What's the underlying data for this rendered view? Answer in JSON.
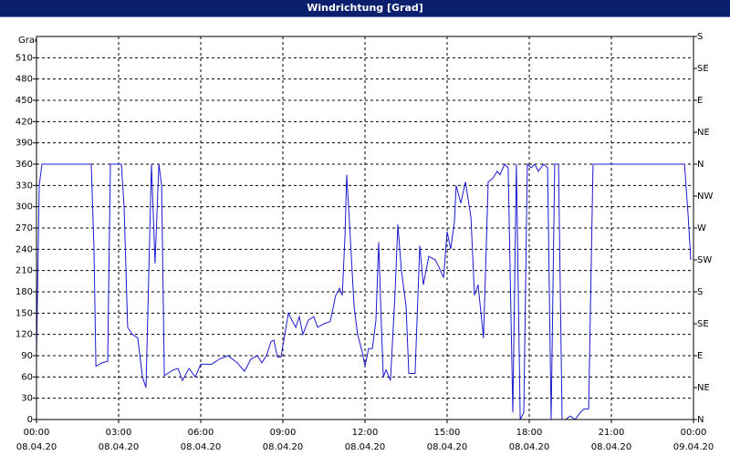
{
  "chart_data": {
    "type": "line",
    "title": "Windrichtung [Grad]",
    "y_label": "Grad",
    "x": [
      0,
      0.1,
      0.2,
      2,
      2.1,
      2.17,
      2.4,
      2.6,
      2.7,
      3.1,
      3.2,
      3.33,
      3.5,
      3.7,
      3.87,
      4,
      4.2,
      4.33,
      4.47,
      4.57,
      4.67,
      5,
      5.17,
      5.33,
      5.57,
      5.8,
      6,
      6.4,
      6.67,
      7,
      7.33,
      7.6,
      7.83,
      8.07,
      8.23,
      8.4,
      8.57,
      8.67,
      8.8,
      8.93,
      9.07,
      9.2,
      9.33,
      9.47,
      9.6,
      9.73,
      9.93,
      10.13,
      10.27,
      10.5,
      10.73,
      10.93,
      11.07,
      11.17,
      11.27,
      11.33,
      11.43,
      11.6,
      11.73,
      11.9,
      12,
      12.13,
      12.27,
      12.4,
      12.5,
      12.6,
      12.67,
      12.77,
      12.93,
      13.1,
      13.2,
      13.33,
      13.5,
      13.6,
      13.83,
      14,
      14.13,
      14.33,
      14.57,
      14.7,
      14.87,
      15,
      15.13,
      15.27,
      15.33,
      15.5,
      15.67,
      15.87,
      16,
      16.13,
      16.33,
      16.5,
      16.67,
      16.83,
      16.93,
      17.1,
      17.23,
      17.4,
      17.53,
      17.67,
      17.8,
      17.93,
      18.07,
      18.2,
      18.33,
      18.53,
      18.67,
      18.8,
      18.93,
      19.07,
      19.2,
      19.33,
      19.5,
      19.67,
      19.87,
      20,
      20.17,
      20.33,
      20.67,
      23.67,
      23.8,
      23.9
    ],
    "series": [
      {
        "name": "Windrichtung",
        "color": "#1a1ad0",
        "values": [
          90,
          330,
          360,
          360,
          240,
          75,
          80,
          82,
          360,
          360,
          300,
          130,
          120,
          115,
          60,
          45,
          360,
          220,
          360,
          330,
          62,
          70,
          72,
          55,
          72,
          60,
          78,
          78,
          85,
          90,
          80,
          68,
          85,
          90,
          80,
          90,
          110,
          112,
          88,
          88,
          120,
          150,
          140,
          130,
          145,
          120,
          140,
          145,
          130,
          135,
          138,
          175,
          185,
          175,
          260,
          345,
          280,
          160,
          120,
          95,
          75,
          100,
          100,
          140,
          250,
          130,
          60,
          70,
          55,
          180,
          275,
          210,
          160,
          65,
          65,
          245,
          190,
          230,
          225,
          215,
          200,
          265,
          240,
          280,
          330,
          305,
          335,
          285,
          175,
          190,
          115,
          335,
          340,
          350,
          345,
          360,
          355,
          10,
          360,
          0,
          10,
          360,
          355,
          360,
          350,
          360,
          355,
          0,
          360,
          360,
          0,
          0,
          5,
          0,
          10,
          15,
          15,
          360,
          360,
          360,
          290,
          225
        ]
      }
    ],
    "xlim": [
      0,
      24
    ],
    "xticks": [
      {
        "value": 0,
        "label": "00:00",
        "date": "08.04.20"
      },
      {
        "value": 3,
        "label": "03:00",
        "date": "08.04.20"
      },
      {
        "value": 6,
        "label": "06:00",
        "date": "08.04.20"
      },
      {
        "value": 9,
        "label": "09:00",
        "date": "08.04.20"
      },
      {
        "value": 12,
        "label": "12:00",
        "date": "08.04.20"
      },
      {
        "value": 15,
        "label": "15:00",
        "date": "08.04.20"
      },
      {
        "value": 18,
        "label": "18:00",
        "date": "08.04.20"
      },
      {
        "value": 21,
        "label": "21:00",
        "date": "08.04.20"
      },
      {
        "value": 24,
        "label": "00:00",
        "date": "09.04.20"
      }
    ],
    "ylim": [
      0,
      540
    ],
    "yticks": [
      0,
      30,
      60,
      90,
      120,
      150,
      180,
      210,
      240,
      270,
      300,
      330,
      360,
      390,
      420,
      450,
      480,
      510
    ],
    "y2lim": [
      0,
      540
    ],
    "y2ticks": [
      {
        "value": 0,
        "label": "N"
      },
      {
        "value": 45,
        "label": "NE"
      },
      {
        "value": 90,
        "label": "E"
      },
      {
        "value": 135,
        "label": "SE"
      },
      {
        "value": 180,
        "label": "S"
      },
      {
        "value": 225,
        "label": "SW"
      },
      {
        "value": 270,
        "label": "W"
      },
      {
        "value": 315,
        "label": "NW"
      },
      {
        "value": 360,
        "label": "N"
      },
      {
        "value": 405,
        "label": "NE"
      },
      {
        "value": 450,
        "label": "E"
      },
      {
        "value": 495,
        "label": "SE"
      },
      {
        "value": 540,
        "label": "S"
      }
    ],
    "grid": true
  }
}
